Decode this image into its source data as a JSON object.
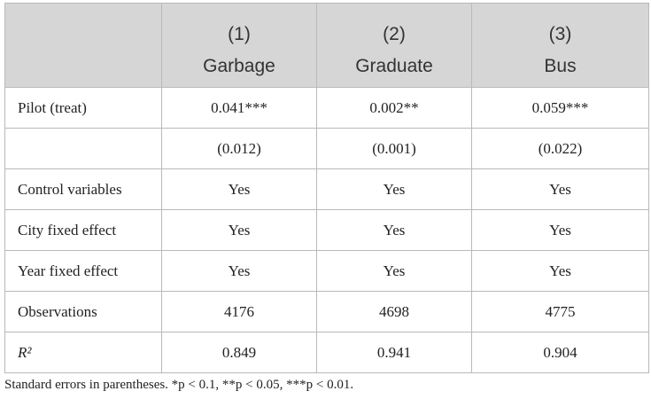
{
  "header": {
    "numbers": [
      "(1)",
      "(2)",
      "(3)"
    ],
    "names": [
      "Garbage",
      "Graduate",
      "Bus"
    ]
  },
  "table": {
    "rows": [
      {
        "label": "Pilot (treat)",
        "cells": [
          "0.041***",
          "0.002**",
          "0.059***"
        ]
      },
      {
        "cells": [
          "(0.012)",
          "(0.001)",
          "(0.022)"
        ]
      },
      {
        "label": "Control variables",
        "cells": [
          "Yes",
          "Yes",
          "Yes"
        ]
      },
      {
        "label": "City fixed effect",
        "cells": [
          "Yes",
          "Yes",
          "Yes"
        ]
      },
      {
        "label": "Year fixed effect",
        "cells": [
          "Yes",
          "Yes",
          "Yes"
        ]
      },
      {
        "label": "Observations",
        "cells": [
          "4176",
          "4698",
          "4775"
        ]
      },
      {
        "label": "R²",
        "cells": [
          "0.849",
          "0.941",
          "0.904"
        ]
      }
    ]
  },
  "footnote": "Standard errors in parentheses. *p < 0.1, **p < 0.05, ***p < 0.01."
}
